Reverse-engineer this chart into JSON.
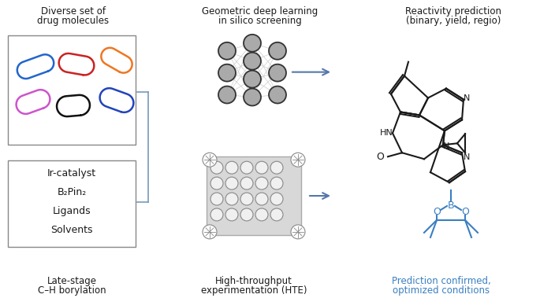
{
  "bg_color": "#ffffff",
  "text_color": "#1a1a1a",
  "blue_color": "#3a7fc1",
  "border_color": "#666666",
  "pill_colors": [
    "#2266cc",
    "#cc2222",
    "#ee7722",
    "#cc55cc",
    "#111111",
    "#2244bb"
  ],
  "section1_title": [
    "Diverse set of",
    "drug molecules"
  ],
  "section2_title": [
    "Geometric deep learning",
    "in silico screening"
  ],
  "section3_title": [
    "Reactivity prediction",
    "(binary, yield, regio)"
  ],
  "box2_lines": [
    "Ir-catalyst",
    "B₂Pin₂",
    "Ligands",
    "Solvents"
  ],
  "label1": [
    "Late-stage",
    "C–H borylation"
  ],
  "label2": [
    "High-throughput",
    "experimentation (HTE)"
  ],
  "label3": [
    "Prediction confirmed,",
    "optimized conditions"
  ],
  "arrow_color": "#5577aa",
  "bracket_color": "#7799bb",
  "node_face": "#aaaaaa",
  "node_edge": "#333333"
}
